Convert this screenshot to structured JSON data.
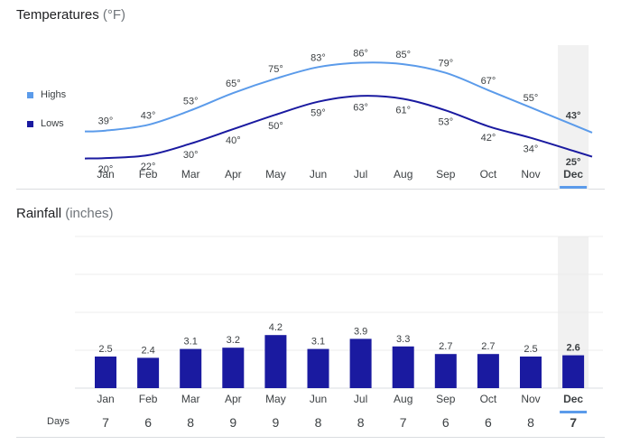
{
  "temperature": {
    "title": "Temperatures",
    "unit": "(°F)",
    "legend": [
      {
        "name": "Highs",
        "color": "#5b9bea"
      },
      {
        "name": "Lows",
        "color": "#1a1aa0"
      }
    ]
  },
  "rainfall": {
    "title": "Rainfall",
    "unit": "(inches)"
  },
  "days_label": "Days",
  "selected_month": "Dec",
  "chart_data": [
    {
      "type": "line",
      "title": "Temperatures (°F)",
      "categories": [
        "Jan",
        "Feb",
        "Mar",
        "Apr",
        "May",
        "Jun",
        "Jul",
        "Aug",
        "Sep",
        "Oct",
        "Nov",
        "Dec"
      ],
      "series": [
        {
          "name": "Highs",
          "values": [
            39,
            43,
            53,
            65,
            75,
            83,
            86,
            85,
            79,
            67,
            55,
            43
          ],
          "labels": [
            "39°",
            "43°",
            "53°",
            "65°",
            "75°",
            "83°",
            "86°",
            "85°",
            "79°",
            "67°",
            "55°",
            "43°"
          ],
          "color": "#5b9bea"
        },
        {
          "name": "Lows",
          "values": [
            20,
            22,
            30,
            40,
            50,
            59,
            63,
            61,
            53,
            42,
            34,
            25
          ],
          "labels": [
            "20°",
            "22°",
            "30°",
            "40°",
            "50°",
            "59°",
            "63°",
            "61°",
            "53°",
            "42°",
            "34°",
            "25°"
          ],
          "color": "#1a1aa0"
        }
      ],
      "highlight": "Dec",
      "grid": false,
      "legend": "left"
    },
    {
      "type": "bar",
      "title": "Rainfall (inches)",
      "categories": [
        "Jan",
        "Feb",
        "Mar",
        "Apr",
        "May",
        "Jun",
        "Jul",
        "Aug",
        "Sep",
        "Oct",
        "Nov",
        "Dec"
      ],
      "values": [
        2.5,
        2.4,
        3.1,
        3.2,
        4.2,
        3.1,
        3.9,
        3.3,
        2.7,
        2.7,
        2.5,
        2.6
      ],
      "labels": [
        "2.5",
        "2.4",
        "3.1",
        "3.2",
        "4.2",
        "3.1",
        "3.9",
        "3.3",
        "2.7",
        "2.7",
        "2.5",
        "2.6"
      ],
      "days": [
        "7",
        "6",
        "8",
        "9",
        "9",
        "8",
        "8",
        "7",
        "6",
        "6",
        "8",
        "7"
      ],
      "color": "#1a1aa0",
      "ylim": [
        0,
        12
      ],
      "grid": true,
      "highlight": "Dec"
    }
  ]
}
